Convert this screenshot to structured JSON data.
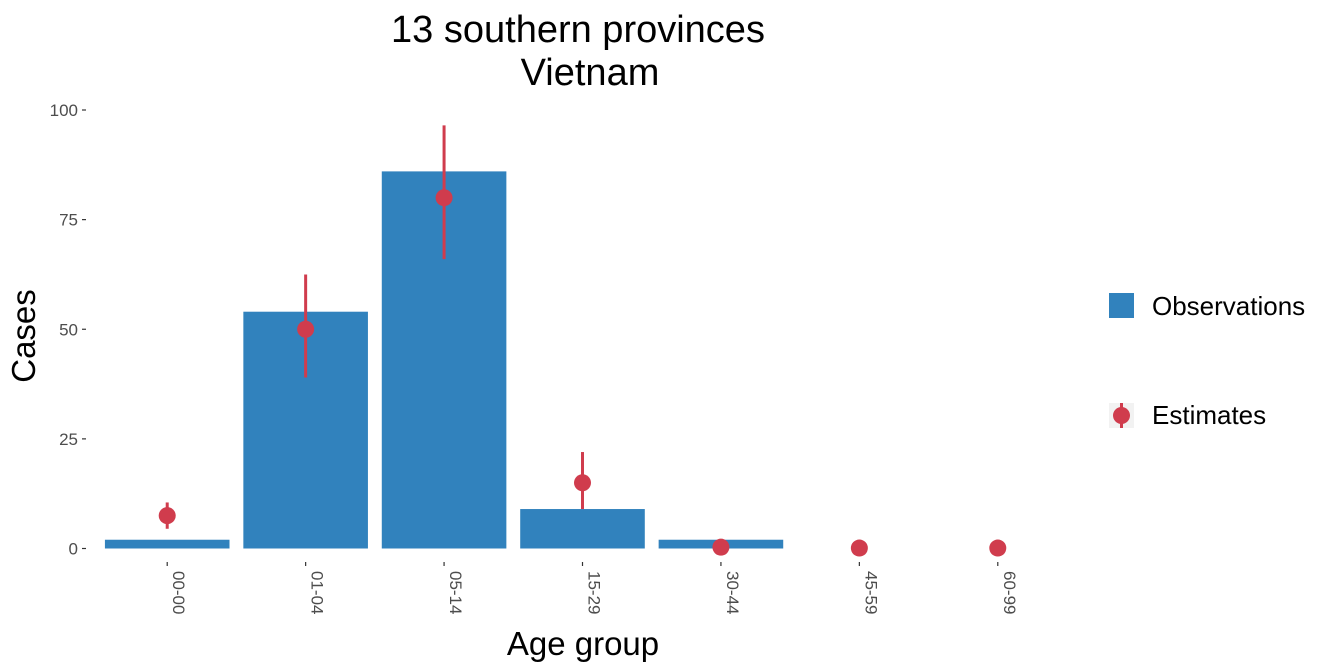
{
  "chart_data": {
    "type": "bar",
    "title": [
      "13 southern provinces",
      "Vietnam"
    ],
    "xlabel": "Age group",
    "ylabel": "Cases",
    "categories": [
      "00-00",
      "01-04",
      "05-14",
      "15-29",
      "30-44",
      "45-59",
      "60-99"
    ],
    "ylim": [
      0,
      100
    ],
    "yticks": [
      0,
      25,
      50,
      75,
      100
    ],
    "grid": false,
    "legend_position": "right",
    "series": [
      {
        "name": "Observations",
        "kind": "bar",
        "color": "#3182bd",
        "values": [
          2,
          54,
          86,
          9,
          2,
          null,
          null
        ]
      },
      {
        "name": "Estimates",
        "kind": "point-range",
        "color": "#d03c4d",
        "values": [
          7.5,
          50,
          80,
          15,
          0.3,
          0.1,
          0.1
        ],
        "lower": [
          4.5,
          39,
          66,
          9,
          null,
          null,
          null
        ],
        "upper": [
          10.5,
          62.5,
          96.5,
          22,
          null,
          null,
          null
        ]
      }
    ]
  }
}
